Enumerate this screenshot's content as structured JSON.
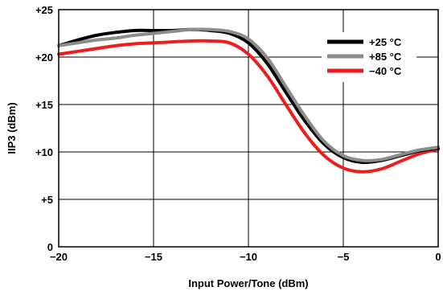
{
  "chart_data": {
    "type": "line",
    "xlabel": "Input Power/Tone (dBm)",
    "ylabel": "IIP3 (dBm)",
    "xlim": [
      -20,
      0
    ],
    "ylim": [
      0,
      25
    ],
    "xticks": [
      -20,
      -15,
      -10,
      -5,
      0
    ],
    "yticks": [
      0,
      5,
      10,
      15,
      20,
      25
    ],
    "xtick_labels": [
      "−20",
      "−15",
      "−10",
      "−5",
      "0"
    ],
    "ytick_labels": [
      "0",
      "+5",
      "+10",
      "+15",
      "+20",
      "+25"
    ],
    "grid": true,
    "legend_position": "top-right",
    "series": [
      {
        "name": "+25 °C",
        "color": "#000000",
        "x": [
          -20,
          -19,
          -18,
          -17,
          -16,
          -15,
          -14,
          -13,
          -12,
          -11,
          -10,
          -9,
          -8,
          -7,
          -6,
          -5,
          -4,
          -3,
          -2,
          -1,
          0
        ],
        "y": [
          21.2,
          21.8,
          22.3,
          22.6,
          22.8,
          22.8,
          22.8,
          22.9,
          22.8,
          22.5,
          21.5,
          19.3,
          16.2,
          13.2,
          10.8,
          9.4,
          8.9,
          9.1,
          9.6,
          10.1,
          10.4
        ]
      },
      {
        "name": "+85 °C",
        "color": "#8c8c8c",
        "x": [
          -20,
          -19,
          -18,
          -17,
          -16,
          -15,
          -14,
          -13,
          -12,
          -11,
          -10,
          -9,
          -8,
          -7,
          -6,
          -5,
          -4,
          -3,
          -2,
          -1,
          0
        ],
        "y": [
          21.2,
          21.5,
          21.8,
          22.0,
          22.3,
          22.5,
          22.7,
          22.9,
          22.9,
          22.7,
          21.9,
          19.9,
          16.8,
          13.7,
          11.1,
          9.6,
          9.1,
          9.2,
          9.7,
          10.2,
          10.5
        ]
      },
      {
        "name": "−40 °C",
        "color": "#ee1c1c",
        "x": [
          -20,
          -19,
          -18,
          -17,
          -16,
          -15,
          -14,
          -13,
          -12,
          -11,
          -10,
          -9,
          -8,
          -7,
          -6,
          -5,
          -4,
          -3,
          -2,
          -1,
          0
        ],
        "y": [
          20.3,
          20.6,
          20.9,
          21.2,
          21.4,
          21.5,
          21.6,
          21.7,
          21.7,
          21.5,
          20.3,
          18.0,
          14.9,
          11.9,
          9.6,
          8.3,
          7.9,
          8.2,
          9.0,
          9.8,
          10.3
        ]
      }
    ]
  }
}
